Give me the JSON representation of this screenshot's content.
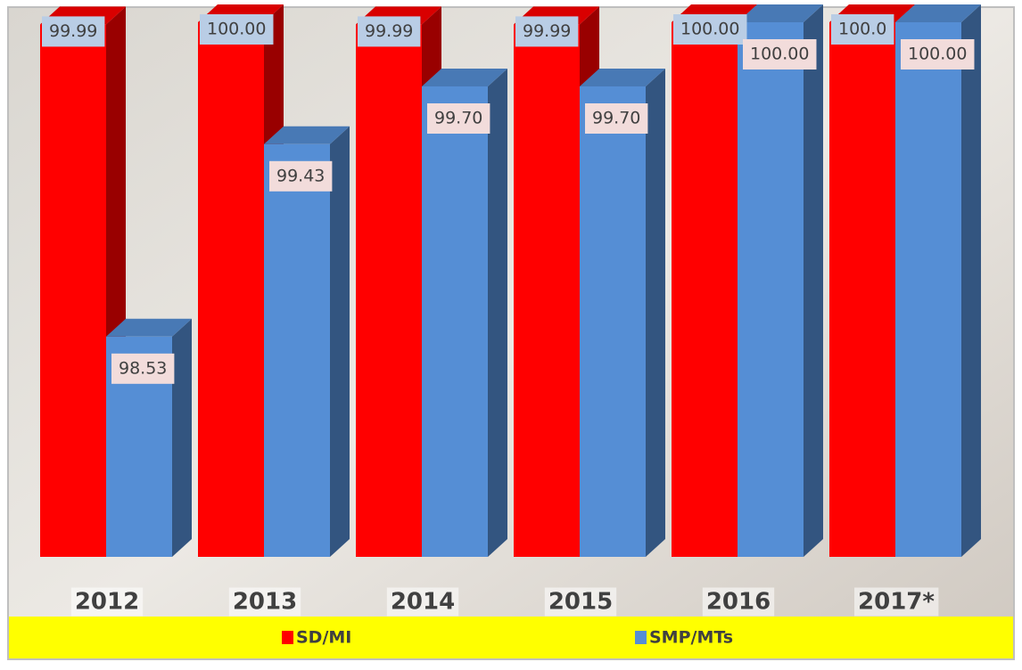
{
  "chart_data": {
    "type": "bar",
    "categories": [
      "2012",
      "2013",
      "2014",
      "2015",
      "2016",
      "2017*"
    ],
    "series": [
      {
        "name": "SD/MI",
        "color": "#ff0000",
        "values": [
          99.99,
          100.0,
          99.99,
          99.99,
          100.0,
          100.0
        ],
        "value_labels": [
          "99.99",
          "100.00",
          "99.99",
          "99.99",
          "100.00",
          "100.0"
        ]
      },
      {
        "name": "SMP/MTs",
        "color": "#558ed5",
        "values": [
          98.53,
          99.43,
          99.7,
          99.7,
          100.0,
          100.0
        ],
        "value_labels": [
          "98.53",
          "99.43",
          "99.70",
          "99.70",
          "100.00",
          "100.00"
        ]
      }
    ],
    "ylim": [
      97.5,
      100
    ],
    "legend": "bottom"
  }
}
